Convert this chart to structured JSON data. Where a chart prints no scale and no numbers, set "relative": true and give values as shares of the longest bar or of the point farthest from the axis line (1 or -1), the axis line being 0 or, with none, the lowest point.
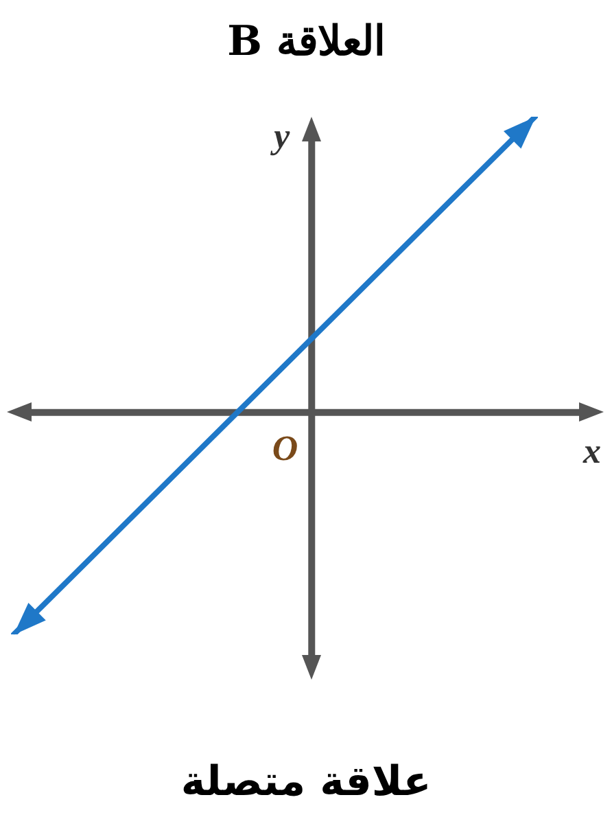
{
  "chart_data": {
    "type": "line",
    "title": "العلاقة B",
    "xlabel": "x",
    "ylabel": "y",
    "relative": true,
    "categories": [
      null,
      null,
      null,
      null,
      null,
      null,
      null,
      null
    ],
    "series": [
      {
        "color": "#1f78c8",
        "values": [
          -0.75,
          -0.5,
          -0.25,
          0,
          0.25,
          0.5,
          0.75,
          1
        ]
      }
    ],
    "legend": false,
    "marker": "none",
    "line_style": "solid",
    "annotations": [
      "O",
      "علاقة متصلة"
    ]
  }
}
